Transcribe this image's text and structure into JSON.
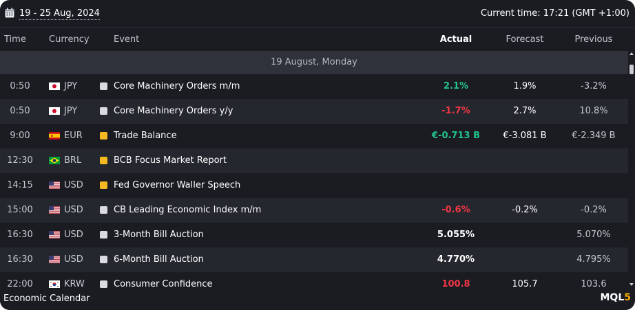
{
  "topbar": {
    "date_range": "19 - 25 Aug, 2024",
    "current_time": "Current time: 17:21 (GMT +1:00)"
  },
  "header": {
    "time": "Time",
    "currency": "Currency",
    "event": "Event",
    "actual": "Actual",
    "forecast": "Forecast",
    "previous": "Previous"
  },
  "day_label": "19 August, Monday",
  "colors": {
    "positive": "#22c58b",
    "negative": "#f23645",
    "neutral": "#ffffff",
    "importance_low": "#d9dbe0",
    "importance_medium": "#f5b921"
  },
  "rows": [
    {
      "time": "0:50",
      "flag": "jp-flag",
      "currency": "JPY",
      "importance": "low",
      "event": "Core Machinery Orders m/m",
      "actual": "2.1%",
      "actual_tone": "positive",
      "forecast": "1.9%",
      "previous": "-3.2%"
    },
    {
      "time": "0:50",
      "flag": "jp-flag",
      "currency": "JPY",
      "importance": "low",
      "event": "Core Machinery Orders y/y",
      "actual": "-1.7%",
      "actual_tone": "negative",
      "forecast": "2.7%",
      "previous": "10.8%"
    },
    {
      "time": "9:00",
      "flag": "es-flag",
      "currency": "EUR",
      "importance": "medium",
      "event": "Trade Balance",
      "actual": "€-0.713 B",
      "actual_tone": "positive",
      "forecast": "€-3.081 B",
      "previous": "€-2.349 B"
    },
    {
      "time": "12:30",
      "flag": "br-flag",
      "currency": "BRL",
      "importance": "medium",
      "event": "BCB Focus Market Report",
      "actual": "",
      "actual_tone": "neutral",
      "forecast": "",
      "previous": ""
    },
    {
      "time": "14:15",
      "flag": "us-flag",
      "currency": "USD",
      "importance": "medium",
      "event": "Fed Governor Waller Speech",
      "actual": "",
      "actual_tone": "neutral",
      "forecast": "",
      "previous": ""
    },
    {
      "time": "15:00",
      "flag": "us-flag",
      "currency": "USD",
      "importance": "low",
      "event": "CB Leading Economic Index m/m",
      "actual": "-0.6%",
      "actual_tone": "negative",
      "forecast": "-0.2%",
      "previous": "-0.2%"
    },
    {
      "time": "16:30",
      "flag": "us-flag",
      "currency": "USD",
      "importance": "low",
      "event": "3-Month Bill Auction",
      "actual": "5.055%",
      "actual_tone": "neutral",
      "forecast": "",
      "previous": "5.070%"
    },
    {
      "time": "16:30",
      "flag": "us-flag",
      "currency": "USD",
      "importance": "low",
      "event": "6-Month Bill Auction",
      "actual": "4.770%",
      "actual_tone": "neutral",
      "forecast": "",
      "previous": "4.795%"
    },
    {
      "time": "22:00",
      "flag": "kr-flag",
      "currency": "KRW",
      "importance": "low",
      "event": "Consumer Confidence",
      "actual": "100.8",
      "actual_tone": "negative",
      "forecast": "105.7",
      "previous": "103.6"
    }
  ],
  "footer": {
    "title": "Economic Calendar",
    "brand_prefix": "MQL",
    "brand_suffix": "5"
  }
}
